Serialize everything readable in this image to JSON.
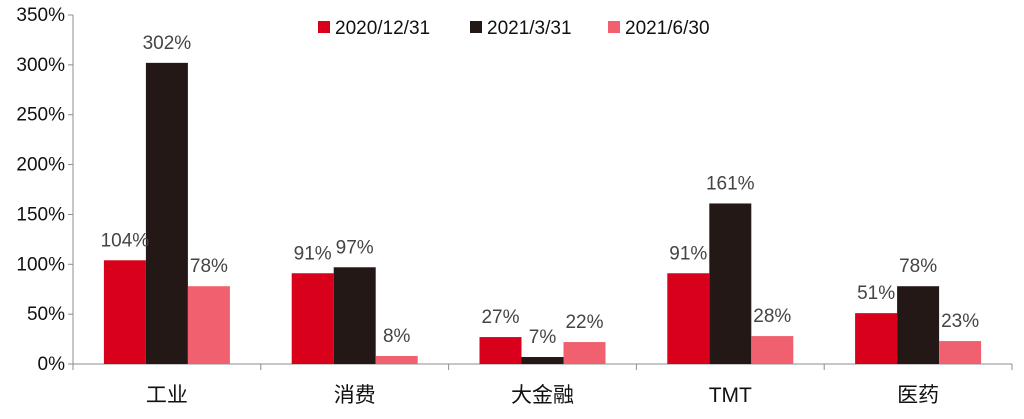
{
  "chart_data": {
    "type": "bar",
    "categories": [
      "工业",
      "消费",
      "大金融",
      "TMT",
      "医药"
    ],
    "series": [
      {
        "name": "2020/12/31",
        "color": "#D9001B",
        "values": [
          104,
          91,
          27,
          91,
          51
        ],
        "labels": [
          "104%",
          "91%",
          "27%",
          "91%",
          "51%"
        ]
      },
      {
        "name": "2021/3/31",
        "color": "#231815",
        "values": [
          302,
          97,
          7,
          161,
          78
        ],
        "labels": [
          "302%",
          "97%",
          "7%",
          "161%",
          "78%"
        ]
      },
      {
        "name": "2021/6/30",
        "color": "#F0606E",
        "values": [
          78,
          8,
          22,
          28,
          23
        ],
        "labels": [
          "78%",
          "8%",
          "22%",
          "28%",
          "23%"
        ]
      }
    ],
    "yticks": [
      "0%",
      "50%",
      "100%",
      "150%",
      "200%",
      "250%",
      "300%",
      "350%"
    ],
    "ylim": [
      0,
      350
    ],
    "unit": "%",
    "legend_position": "top",
    "grid": false
  }
}
